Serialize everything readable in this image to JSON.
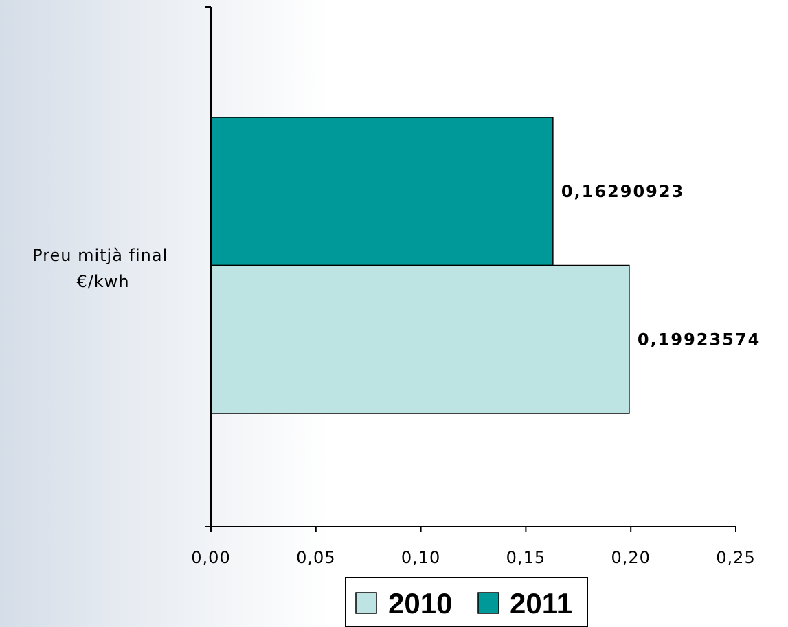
{
  "chart_data": {
    "type": "bar",
    "orientation": "horizontal",
    "categories": [
      "Preu mitjà final €/kwh"
    ],
    "category_label_lines": [
      "Preu mitjà final",
      "€/kwh"
    ],
    "series": [
      {
        "name": "2010",
        "values": [
          0.19923574
        ],
        "label": "0,19923574",
        "color": "#bde3e3"
      },
      {
        "name": "2011",
        "values": [
          0.16290923
        ],
        "label": "0,16290923",
        "color": "#009999"
      }
    ],
    "xlim": [
      0,
      0.25
    ],
    "x_ticks": [
      "0,00",
      "0,05",
      "0,10",
      "0,15",
      "0,20",
      "0,25"
    ],
    "title": "",
    "xlabel": "",
    "ylabel": "",
    "grid": false,
    "legend": {
      "position": "bottom",
      "entries": [
        "2010",
        "2011"
      ]
    }
  }
}
